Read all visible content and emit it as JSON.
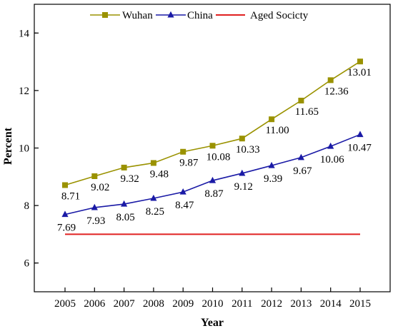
{
  "chart_data": {
    "type": "line",
    "title": "",
    "xlabel": "Year",
    "ylabel": "Percent",
    "x": [
      2005,
      2006,
      2007,
      2008,
      2009,
      2010,
      2011,
      2012,
      2013,
      2014,
      2015
    ],
    "ylim": [
      5,
      15
    ],
    "yticks": [
      6,
      8,
      10,
      12,
      14
    ],
    "grid": false,
    "legend": "top",
    "series": [
      {
        "name": "Wuhan",
        "color": "#9a9200",
        "marker": "square",
        "values": [
          8.71,
          9.02,
          9.32,
          9.48,
          9.87,
          10.08,
          10.33,
          11.0,
          11.65,
          12.36,
          13.01
        ],
        "labels": [
          "8.71",
          "9.02",
          "9.32",
          "9.48",
          "9.87",
          "10.08",
          "10.33",
          "11.00",
          "11.65",
          "12.36",
          "13.01"
        ]
      },
      {
        "name": "China",
        "color": "#1a1aa6",
        "marker": "triangle",
        "values": [
          7.69,
          7.93,
          8.05,
          8.25,
          8.47,
          8.87,
          9.12,
          9.39,
          9.67,
          10.06,
          10.47
        ],
        "labels": [
          "7.69",
          "7.93",
          "8.05",
          "8.25",
          "8.47",
          "8.87",
          "9.12",
          "9.39",
          "9.67",
          "10.06",
          "10.47"
        ]
      },
      {
        "name": "Aged Socicty",
        "color": "#e02020",
        "marker": "none",
        "values": [
          7,
          7,
          7,
          7,
          7,
          7,
          7,
          7,
          7,
          7,
          7
        ]
      }
    ]
  }
}
